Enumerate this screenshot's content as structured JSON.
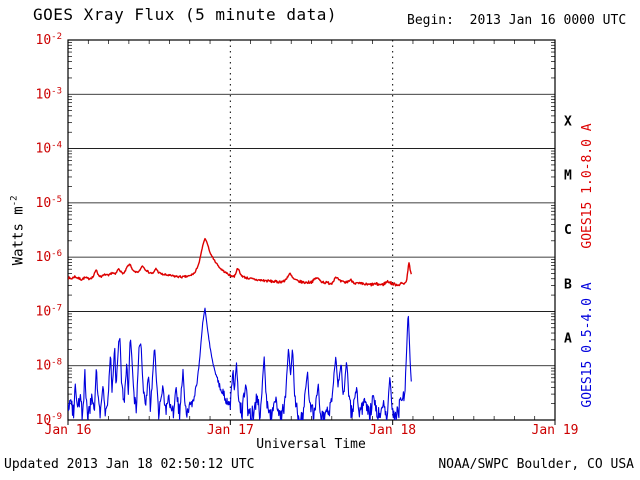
{
  "colors": {
    "background": "#ffffff",
    "text": "#000000",
    "tick_labels": "#cc0000",
    "red_series": "#dd0000",
    "blue_series": "#0000dd",
    "grid": "#000000"
  },
  "chart_data": {
    "type": "line",
    "title": "GOES Xray Flux (5 minute data)",
    "begin_label": "Begin:  2013 Jan 16 0000 UTC",
    "xlabel": "Universal Time",
    "ylabel_text": "Watts m",
    "ylabel_exp": "-2",
    "footer_left": "Updated 2013 Jan 18 02:50:12 UTC",
    "footer_right": "NOAA/SWPC Boulder, CO USA",
    "xlim_hours": [
      0,
      72
    ],
    "ylim_log": [
      -9,
      -2
    ],
    "grid": "on",
    "legend_position": "right-rotated",
    "x_ticks": [
      {
        "hours": 0,
        "label": "Jan 16"
      },
      {
        "hours": 24,
        "label": "Jan 17"
      },
      {
        "hours": 48,
        "label": "Jan 18"
      },
      {
        "hours": 72,
        "label": "Jan 19"
      }
    ],
    "y_exponents": [
      -2,
      -3,
      -4,
      -5,
      -6,
      -7,
      -8,
      -9
    ],
    "flare_classes": [
      {
        "label": "X",
        "log": -3.5
      },
      {
        "label": "M",
        "log": -4.5
      },
      {
        "label": "C",
        "log": -5.5
      },
      {
        "label": "B",
        "log": -6.5
      },
      {
        "label": "A",
        "log": -7.5
      }
    ],
    "noise_seed": 7,
    "series": [
      {
        "name": "GOES15 1.0-8.0 A",
        "color": "#dd0000",
        "noise": 2e-08,
        "points": [
          [
            0,
            4.2e-07
          ],
          [
            0.5,
            4e-07
          ],
          [
            1,
            4.4e-07
          ],
          [
            1.5,
            4.1e-07
          ],
          [
            2,
            3.9e-07
          ],
          [
            2.5,
            4.2e-07
          ],
          [
            3,
            4e-07
          ],
          [
            3.7,
            4.3e-07
          ],
          [
            4.2,
            6e-07
          ],
          [
            4.5,
            4.6e-07
          ],
          [
            5,
            4.4e-07
          ],
          [
            5.5,
            4.8e-07
          ],
          [
            6,
            4.5e-07
          ],
          [
            6.5,
            5.2e-07
          ],
          [
            7,
            4.8e-07
          ],
          [
            7.5,
            6.2e-07
          ],
          [
            7.9,
            5.2e-07
          ],
          [
            8.3,
            5e-07
          ],
          [
            8.8,
            6.8e-07
          ],
          [
            9.2,
            7.4e-07
          ],
          [
            9.6,
            5.6e-07
          ],
          [
            10,
            5.2e-07
          ],
          [
            10.5,
            5.4e-07
          ],
          [
            11,
            7e-07
          ],
          [
            11.4,
            6e-07
          ],
          [
            12,
            5.2e-07
          ],
          [
            12.6,
            5e-07
          ],
          [
            13,
            6.2e-07
          ],
          [
            13.4,
            5.2e-07
          ],
          [
            14,
            4.8e-07
          ],
          [
            15,
            4.6e-07
          ],
          [
            16,
            4.4e-07
          ],
          [
            17,
            4.3e-07
          ],
          [
            18,
            4.5e-07
          ],
          [
            18.8,
            5.2e-07
          ],
          [
            19.4,
            8e-07
          ],
          [
            19.9,
            1.6e-06
          ],
          [
            20.25,
            2.2e-06
          ],
          [
            20.6,
            1.8e-06
          ],
          [
            21,
            1.2e-06
          ],
          [
            21.7,
            8.5e-07
          ],
          [
            22.5,
            6.2e-07
          ],
          [
            23.3,
            5.2e-07
          ],
          [
            24,
            4.6e-07
          ],
          [
            24.6,
            4.4e-07
          ],
          [
            25.1,
            6.4e-07
          ],
          [
            25.5,
            4.8e-07
          ],
          [
            26,
            4.3e-07
          ],
          [
            27,
            4e-07
          ],
          [
            28,
            3.8e-07
          ],
          [
            29,
            3.7e-07
          ],
          [
            30,
            3.6e-07
          ],
          [
            31,
            3.5e-07
          ],
          [
            32,
            3.6e-07
          ],
          [
            32.8,
            5e-07
          ],
          [
            33.3,
            4e-07
          ],
          [
            34,
            3.6e-07
          ],
          [
            35,
            3.4e-07
          ],
          [
            36,
            3.5e-07
          ],
          [
            36.8,
            4.2e-07
          ],
          [
            37.4,
            3.6e-07
          ],
          [
            38,
            3.4e-07
          ],
          [
            39,
            3.3e-07
          ],
          [
            39.6,
            4.4e-07
          ],
          [
            40.2,
            3.6e-07
          ],
          [
            41,
            3.4e-07
          ],
          [
            41.8,
            3.8e-07
          ],
          [
            42.5,
            3.3e-07
          ],
          [
            43.5,
            3.2e-07
          ],
          [
            44.5,
            3.1e-07
          ],
          [
            45.5,
            3.2e-07
          ],
          [
            46.5,
            3.1e-07
          ],
          [
            47.3,
            3.6e-07
          ],
          [
            48,
            3.2e-07
          ],
          [
            48.8,
            3.1e-07
          ],
          [
            49.5,
            3.3e-07
          ],
          [
            50,
            3.4e-07
          ],
          [
            50.4,
            8e-07
          ],
          [
            50.7,
            5e-07
          ],
          [
            50.83,
            4.2e-07
          ]
        ]
      },
      {
        "name": "GOES15 0.5-4.0 A",
        "color": "#0000dd",
        "noise": 6e-10,
        "points": [
          [
            0,
            1.6e-09
          ],
          [
            0.4,
            3e-09
          ],
          [
            0.8,
            1.4e-09
          ],
          [
            1.1,
            4.5e-09
          ],
          [
            1.3,
            1.5e-09
          ],
          [
            1.8,
            2.5e-09
          ],
          [
            2.2,
            1.2e-09
          ],
          [
            2.5,
            8e-09
          ],
          [
            2.7,
            1.8e-09
          ],
          [
            3.1,
            1.3e-09
          ],
          [
            3.5,
            3e-09
          ],
          [
            3.9,
            1.4e-09
          ],
          [
            4.2,
            1.1e-08
          ],
          [
            4.4,
            2.5e-09
          ],
          [
            4.8,
            1.5e-09
          ],
          [
            5.2,
            4e-09
          ],
          [
            5.5,
            1.6e-09
          ],
          [
            5.9,
            2.2e-09
          ],
          [
            6.3,
            1.9e-08
          ],
          [
            6.5,
            3e-09
          ],
          [
            6.9,
            2.4e-08
          ],
          [
            7.1,
            4e-09
          ],
          [
            7.5,
            2.8e-08
          ],
          [
            7.7,
            3.2e-08
          ],
          [
            7.9,
            5e-09
          ],
          [
            8.3,
            2e-09
          ],
          [
            8.7,
            1.2e-08
          ],
          [
            8.9,
            2.5e-09
          ],
          [
            9.2,
            3.6e-08
          ],
          [
            9.45,
            1.4e-08
          ],
          [
            9.7,
            3e-09
          ],
          [
            10.1,
            1.6e-09
          ],
          [
            10.5,
            2.2e-08
          ],
          [
            10.8,
            2.6e-08
          ],
          [
            11.1,
            4e-09
          ],
          [
            11.5,
            1.8e-09
          ],
          [
            11.9,
            7e-09
          ],
          [
            12.2,
            1.6e-09
          ],
          [
            12.8,
            2.4e-08
          ],
          [
            13.1,
            5e-09
          ],
          [
            13.4,
            1.3e-09
          ],
          [
            14,
            4e-09
          ],
          [
            14.4,
            1.3e-09
          ],
          [
            14.9,
            2.5e-09
          ],
          [
            15.4,
            1.2e-09
          ],
          [
            16,
            3.5e-09
          ],
          [
            16.5,
            1.3e-09
          ],
          [
            17,
            8e-09
          ],
          [
            17.3,
            1.8e-09
          ],
          [
            17.9,
            1.4e-09
          ],
          [
            18.5,
            2.5e-09
          ],
          [
            19,
            4e-09
          ],
          [
            19.5,
            1.5e-08
          ],
          [
            19.9,
            6e-08
          ],
          [
            20.25,
            1.15e-07
          ],
          [
            20.6,
            5e-08
          ],
          [
            21,
            2.2e-08
          ],
          [
            21.5,
            1e-08
          ],
          [
            22,
            6e-09
          ],
          [
            22.7,
            3.5e-09
          ],
          [
            23.4,
            2.5e-09
          ],
          [
            24,
            2e-09
          ],
          [
            24.4,
            9e-09
          ],
          [
            24.6,
            3e-09
          ],
          [
            24.9,
            1.2e-08
          ],
          [
            25.2,
            2.5e-09
          ],
          [
            25.7,
            1.4e-09
          ],
          [
            26.3,
            5e-09
          ],
          [
            26.6,
            1.4e-09
          ],
          [
            27.3,
            1.2e-09
          ],
          [
            28,
            3e-09
          ],
          [
            28.4,
            1.2e-09
          ],
          [
            29,
            1.5e-08
          ],
          [
            29.3,
            2.5e-09
          ],
          [
            29.9,
            1.2e-09
          ],
          [
            30.6,
            2.5e-09
          ],
          [
            31.3,
            1.1e-09
          ],
          [
            32,
            1.5e-09
          ],
          [
            32.6,
            2.1e-08
          ],
          [
            32.9,
            6e-09
          ],
          [
            33.2,
            2.3e-08
          ],
          [
            33.5,
            3e-09
          ],
          [
            34,
            1.4e-09
          ],
          [
            34.7,
            1.2e-09
          ],
          [
            35.4,
            8e-09
          ],
          [
            35.7,
            2e-09
          ],
          [
            36.3,
            1.3e-09
          ],
          [
            37,
            4e-09
          ],
          [
            37.4,
            1.2e-09
          ],
          [
            38.2,
            1.1e-09
          ],
          [
            39,
            2.5e-09
          ],
          [
            39.6,
            1.5e-08
          ],
          [
            39.9,
            4e-09
          ],
          [
            40.4,
            1.1e-08
          ],
          [
            40.7,
            2.5e-09
          ],
          [
            41.2,
            1.3e-08
          ],
          [
            41.5,
            3e-09
          ],
          [
            42,
            1.2e-09
          ],
          [
            42.7,
            4e-09
          ],
          [
            43.1,
            1.2e-09
          ],
          [
            44,
            2.5e-09
          ],
          [
            44.5,
            1.1e-09
          ],
          [
            45.2,
            3e-09
          ],
          [
            45.8,
            1.2e-09
          ],
          [
            46.5,
            2e-09
          ],
          [
            47.2,
            1.2e-09
          ],
          [
            47.6,
            6e-09
          ],
          [
            47.9,
            1.6e-09
          ],
          [
            48.6,
            1.2e-09
          ],
          [
            49.3,
            2.5e-09
          ],
          [
            49.8,
            3e-09
          ],
          [
            50.3,
            1.05e-07
          ],
          [
            50.55,
            1.5e-08
          ],
          [
            50.83,
            3e-09
          ]
        ]
      }
    ]
  }
}
